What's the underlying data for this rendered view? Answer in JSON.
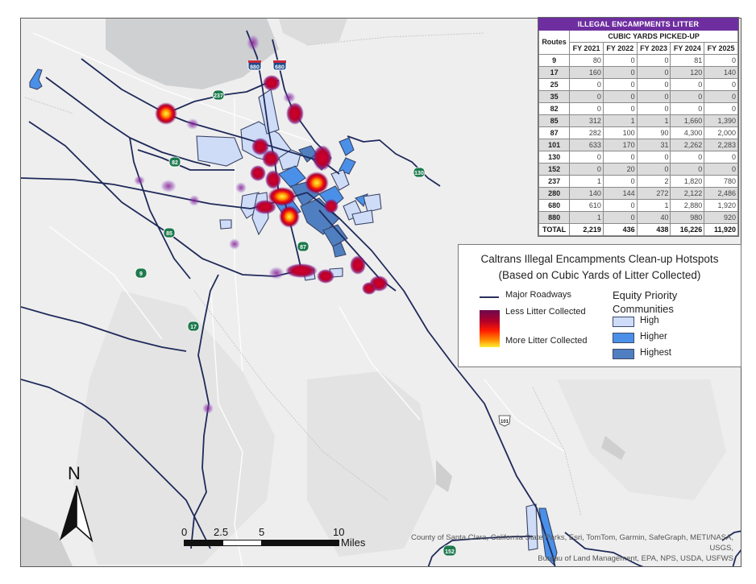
{
  "map": {
    "title_line1": "Caltrans Illegal Encampments Clean-up Hotspots",
    "title_line2": "(Based on Cubic Yards of Litter Collected)",
    "road_shields": [
      {
        "route": "880",
        "type": "interstate"
      },
      {
        "route": "680",
        "type": "interstate"
      },
      {
        "route": "237",
        "type": "state"
      },
      {
        "route": "82",
        "type": "state"
      },
      {
        "route": "130",
        "type": "state"
      },
      {
        "route": "85",
        "type": "state"
      },
      {
        "route": "87",
        "type": "state"
      },
      {
        "route": "9",
        "type": "state"
      },
      {
        "route": "17",
        "type": "state"
      },
      {
        "route": "101",
        "type": "us"
      },
      {
        "route": "152",
        "type": "state"
      }
    ],
    "colors": {
      "road": "#1f2a5a",
      "equity_high": "#cfdcf7",
      "equity_higher": "#4a90e8",
      "equity_highest": "#4f7fc0",
      "table_header": "#6f2ea0",
      "basemap": "#ececec"
    }
  },
  "table": {
    "title": "ILLEGAL ENCAMPMENTS LITTER",
    "row_header": "Routes",
    "group_header": "CUBIC YARDS PICKED-UP",
    "columns": [
      "FY 2021",
      "FY 2022",
      "FY 2023",
      "FY 2024",
      "FY 2025"
    ],
    "rows": [
      {
        "route": "9",
        "values": [
          "80",
          "0",
          "0",
          "81",
          "0"
        ]
      },
      {
        "route": "17",
        "values": [
          "160",
          "0",
          "0",
          "120",
          "140"
        ]
      },
      {
        "route": "25",
        "values": [
          "0",
          "0",
          "0",
          "0",
          "0"
        ]
      },
      {
        "route": "35",
        "values": [
          "0",
          "0",
          "0",
          "0",
          "0"
        ]
      },
      {
        "route": "82",
        "values": [
          "0",
          "0",
          "0",
          "0",
          "0"
        ]
      },
      {
        "route": "85",
        "values": [
          "312",
          "1",
          "1",
          "1,660",
          "1,390"
        ]
      },
      {
        "route": "87",
        "values": [
          "282",
          "100",
          "90",
          "4,300",
          "2,000"
        ]
      },
      {
        "route": "101",
        "values": [
          "633",
          "170",
          "31",
          "2,262",
          "2,283"
        ]
      },
      {
        "route": "130",
        "values": [
          "0",
          "0",
          "0",
          "0",
          "0"
        ]
      },
      {
        "route": "152",
        "values": [
          "0",
          "20",
          "0",
          "0",
          "0"
        ]
      },
      {
        "route": "237",
        "values": [
          "1",
          "0",
          "2",
          "1,820",
          "780"
        ]
      },
      {
        "route": "280",
        "values": [
          "140",
          "144",
          "272",
          "2,122",
          "2,486"
        ]
      },
      {
        "route": "680",
        "values": [
          "610",
          "0",
          "1",
          "2,880",
          "1,920"
        ]
      },
      {
        "route": "880",
        "values": [
          "1",
          "0",
          "40",
          "980",
          "920"
        ]
      }
    ],
    "total": {
      "route": "TOTAL",
      "values": [
        "2,219",
        "436",
        "438",
        "16,226",
        "11,920"
      ]
    }
  },
  "legend": {
    "road_label": "Major Roadways",
    "less_label": "Less Litter Collected",
    "more_label": "More Litter Collected",
    "equity_title_line1": "Equity Priority",
    "equity_title_line2": "Communities",
    "equity_items": [
      "High",
      "Higher",
      "Highest"
    ]
  },
  "north_arrow": {
    "label": "N"
  },
  "scale_bar": {
    "ticks": [
      "0",
      "2.5",
      "5",
      "10"
    ],
    "units": "Miles"
  },
  "attribution": {
    "line1": "County of Santa Clara, California State Parks, Esri, TomTom, Garmin, SafeGraph, METI/NASA, USGS,",
    "line2": "Bureau of Land Management, EPA, NPS, USDA, USFWS"
  }
}
